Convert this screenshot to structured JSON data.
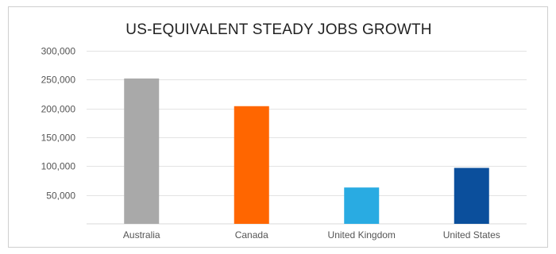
{
  "chart_data": {
    "type": "bar",
    "title": "US-EQUIVALENT STEADY JOBS GROWTH",
    "xlabel": "",
    "ylabel": "",
    "categories": [
      "Australia",
      "Canada",
      "United Kingdom",
      "United States"
    ],
    "values": [
      252000,
      204000,
      63000,
      97000
    ],
    "colors": [
      "#a9a9a9",
      "#ff6600",
      "#29abe2",
      "#0b4f9c"
    ],
    "ylim": [
      0,
      300000
    ],
    "yticks": [
      50000,
      100000,
      150000,
      200000,
      250000,
      300000
    ],
    "ytick_labels": [
      "50,000",
      "100,000",
      "150,000",
      "200,000",
      "250,000",
      "300,000"
    ],
    "grid": true,
    "legend": "none"
  }
}
